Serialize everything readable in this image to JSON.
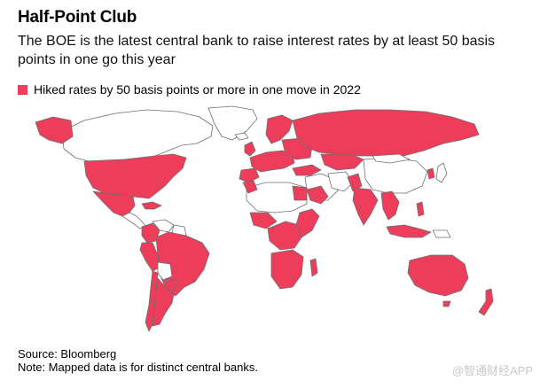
{
  "title": "Half-Point Club",
  "subtitle": "The BOE is the latest central bank to raise interest rates by at least 50 basis points in one go this year",
  "legend": {
    "label": "Hiked rates by 50 basis points or more in one move in 2022",
    "color": "#ee3d5a"
  },
  "colors": {
    "hiked": "#ee3d5a",
    "other": "#ffffff",
    "border": "#6e6e6e"
  },
  "footer": {
    "source": "Source: Bloomberg",
    "note": "Note: Mapped data is for distinct central banks."
  },
  "watermark": "@智通财经APP"
}
